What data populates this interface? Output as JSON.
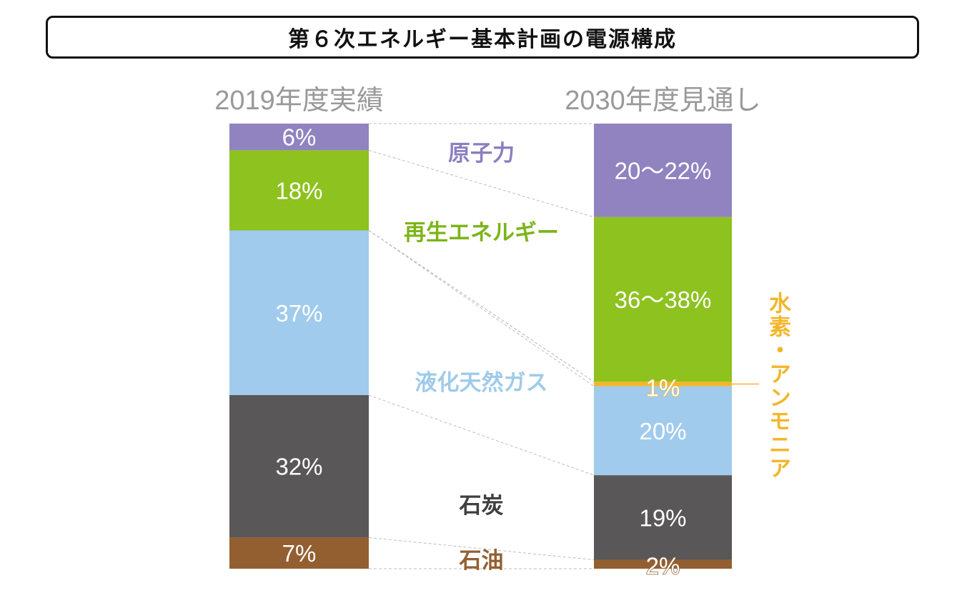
{
  "title": "第６次エネルギー基本計画の電源構成",
  "chart_data": {
    "type": "bar",
    "stacked": true,
    "categories": [
      "2019年度実績",
      "2030年度見通し"
    ],
    "series": [
      {
        "name": "原子力",
        "values": [
          6,
          21
        ],
        "labels": [
          "6%",
          "20～22%"
        ],
        "color": "#9083bf"
      },
      {
        "name": "再生エネルギー",
        "values": [
          18,
          37
        ],
        "labels": [
          "18%",
          "36～38%"
        ],
        "color": "#8dc21f"
      },
      {
        "name": "水素・アンモニア",
        "values": [
          0,
          1
        ],
        "labels": [
          "",
          "1%"
        ],
        "color": "#f3b62a"
      },
      {
        "name": "液化天然ガス",
        "values": [
          37,
          20
        ],
        "labels": [
          "37%",
          "20%"
        ],
        "color": "#a0cbec"
      },
      {
        "name": "石炭",
        "values": [
          32,
          19
        ],
        "labels": [
          "32%",
          "19%"
        ],
        "color": "#595757"
      },
      {
        "name": "石油",
        "values": [
          7,
          2
        ],
        "labels": [
          "7%",
          "2%"
        ],
        "color": "#935f31"
      }
    ],
    "series_label_colors": [
      "#8b7fc0",
      "#7cb518",
      "#f3b62a",
      "#9fcbeb",
      "#3f3f3f",
      "#935f31"
    ],
    "category_label_color": "#999999"
  }
}
